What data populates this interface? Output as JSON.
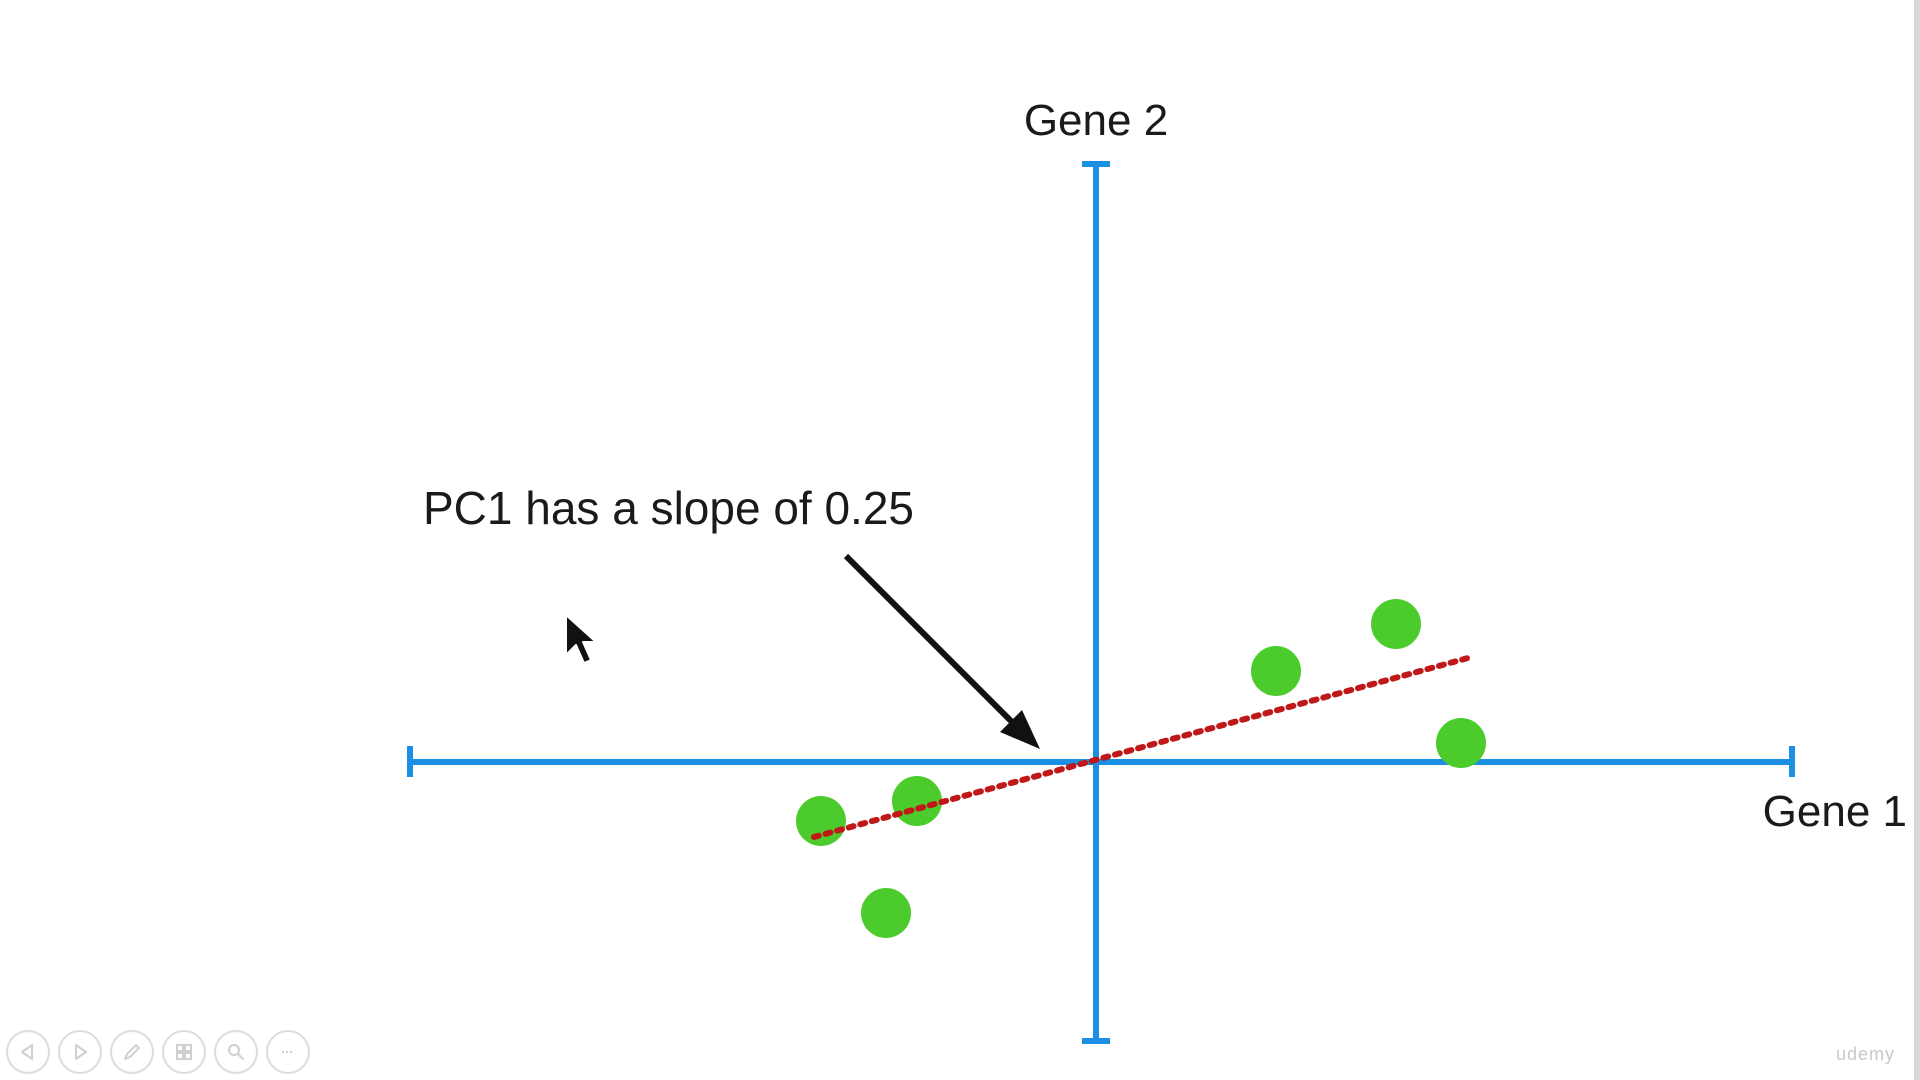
{
  "diagram": {
    "x_axis_label": "Gene 1",
    "y_axis_label": "Gene 2",
    "annotation": "PC1 has a slope of 0.25",
    "axis_color": "#1a8fe3",
    "point_color": "#4ccc2c",
    "pc1_line_color": "#c01818",
    "arrow_color": "#111111"
  },
  "controls": {
    "items": [
      {
        "icon": "previous-icon"
      },
      {
        "icon": "next-icon"
      },
      {
        "icon": "pen-icon"
      },
      {
        "icon": "slides-grid-icon"
      },
      {
        "icon": "zoom-icon"
      },
      {
        "icon": "more-icon"
      }
    ]
  },
  "watermark": {
    "text": "udemy"
  }
}
